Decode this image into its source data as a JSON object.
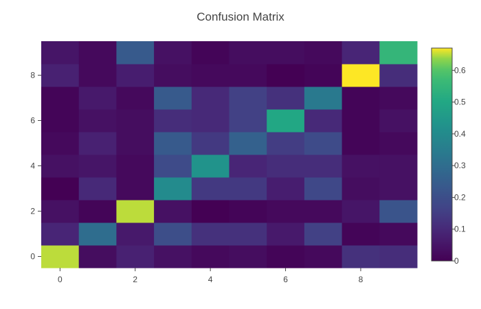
{
  "chart_data": {
    "type": "heatmap",
    "title": "Confusion Matrix",
    "xlabel": "",
    "ylabel": "",
    "x_ticks": [
      0,
      2,
      4,
      6,
      8
    ],
    "y_ticks": [
      0,
      2,
      4,
      6,
      8
    ],
    "zmin": 0,
    "zmax": 0.67,
    "colorscale": "viridis",
    "colorbar_ticks": [
      0,
      0.1,
      0.2,
      0.3,
      0.4,
      0.5,
      0.6
    ],
    "colorbar_ticklabels": [
      "0",
      "0.1",
      "0.2",
      "0.3",
      "0.4",
      "0.5",
      "0.6"
    ],
    "z": [
      [
        0.65,
        0.03,
        0.08,
        0.04,
        0.02,
        0.03,
        0.01,
        0.02,
        0.12,
        0.11
      ],
      [
        0.09,
        0.3,
        0.06,
        0.2,
        0.12,
        0.12,
        0.06,
        0.16,
        0.01,
        0.02
      ],
      [
        0.04,
        0.01,
        0.65,
        0.04,
        0.0,
        0.01,
        0.02,
        0.02,
        0.05,
        0.22
      ],
      [
        0.0,
        0.1,
        0.02,
        0.4,
        0.14,
        0.14,
        0.07,
        0.18,
        0.03,
        0.04
      ],
      [
        0.04,
        0.05,
        0.02,
        0.19,
        0.43,
        0.09,
        0.11,
        0.11,
        0.04,
        0.04
      ],
      [
        0.02,
        0.08,
        0.03,
        0.24,
        0.14,
        0.26,
        0.15,
        0.19,
        0.01,
        0.02
      ],
      [
        0.01,
        0.04,
        0.03,
        0.11,
        0.1,
        0.16,
        0.5,
        0.1,
        0.01,
        0.04
      ],
      [
        0.01,
        0.06,
        0.02,
        0.24,
        0.1,
        0.16,
        0.12,
        0.34,
        0.01,
        0.02
      ],
      [
        0.08,
        0.02,
        0.07,
        0.03,
        0.02,
        0.02,
        0.0,
        0.01,
        0.67,
        0.11
      ],
      [
        0.05,
        0.02,
        0.24,
        0.04,
        0.01,
        0.03,
        0.03,
        0.02,
        0.09,
        0.55
      ]
    ]
  }
}
